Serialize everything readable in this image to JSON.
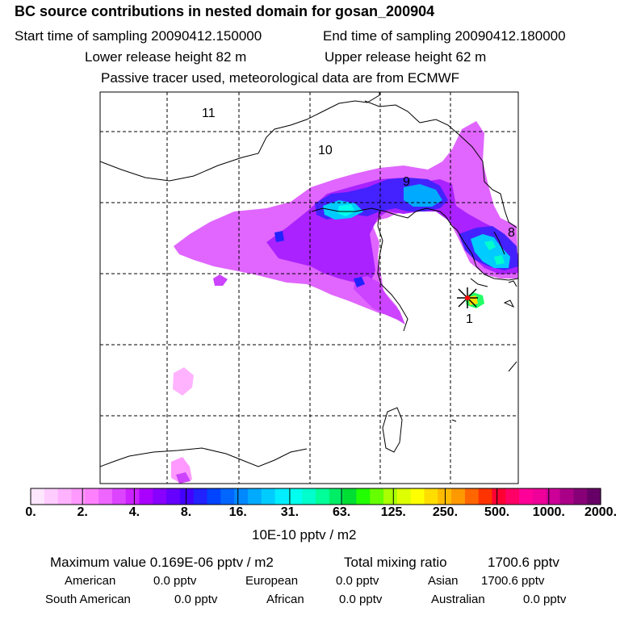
{
  "header": {
    "title": "BC  source contributions in nested domain for gosan_200904",
    "start_time": "Start time of sampling 20090412.150000",
    "end_time": "End time of sampling 20090412.180000",
    "lower_height": "Lower release height   82 m",
    "upper_height": "Upper release height   62 m",
    "note": "Passive tracer used, meteorological data are from ECMWF"
  },
  "map": {
    "region_labels": [
      "11",
      "10",
      "9",
      "8",
      "1"
    ],
    "receptor_marker": "x-marker-icon"
  },
  "colorbar": {
    "tick_labels": [
      "0.",
      "2.",
      "4.",
      "8.",
      "16.",
      "31.",
      "63.",
      "125.",
      "250.",
      "500.",
      "1000.",
      "2000."
    ],
    "colors": [
      "#ffe6ff",
      "#ffccff",
      "#ffb3ff",
      "#ff99ff",
      "#ff80ff",
      "#ee66ff",
      "#dd44ff",
      "#cc22ff",
      "#aa00ff",
      "#8800ff",
      "#6600ff",
      "#4400ff",
      "#2222ff",
      "#0044ff",
      "#0066ff",
      "#0088ff",
      "#00aaff",
      "#00ccff",
      "#00eeff",
      "#00ffee",
      "#00ffcc",
      "#00ff99",
      "#00ee66",
      "#00dd33",
      "#22ff00",
      "#66ff00",
      "#aaff00",
      "#ddff00",
      "#ffff00",
      "#ffdd00",
      "#ffbb00",
      "#ff9900",
      "#ff6600",
      "#ff3300",
      "#ff0033",
      "#ff0066",
      "#ff0099",
      "#ee0099",
      "#cc0099",
      "#aa0088",
      "#880077",
      "#660066"
    ],
    "units": "10E-10 pptv / m2"
  },
  "stats": {
    "max_value": "Maximum value  0.169E-06 pptv / m2",
    "total_label": "Total mixing ratio",
    "total_value": "1700.6 pptv",
    "rows": [
      {
        "name": "American",
        "value": "0.0 pptv"
      },
      {
        "name": "European",
        "value": "0.0 pptv"
      },
      {
        "name": "Asian",
        "value": "1700.6 pptv"
      },
      {
        "name": "South American",
        "value": "0.0 pptv"
      },
      {
        "name": "African",
        "value": "0.0 pptv"
      },
      {
        "name": "Australian",
        "value": "0.0 pptv"
      }
    ]
  }
}
